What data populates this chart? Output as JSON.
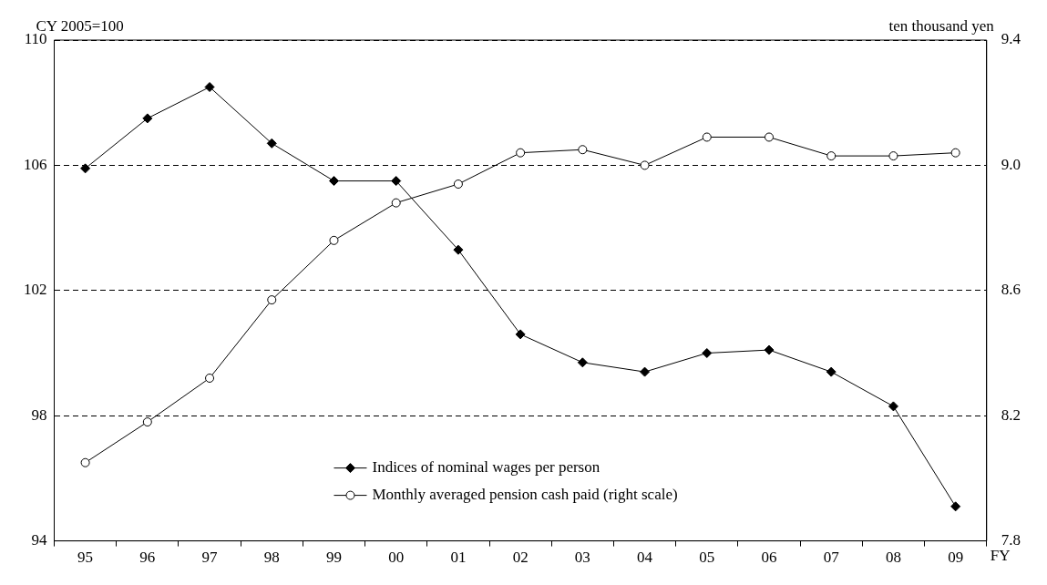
{
  "chart_data": {
    "type": "line",
    "xlabel": "FY",
    "ylabel": "CY 2005=100",
    "y2label": "ten thousand yen",
    "categories": [
      "95",
      "96",
      "97",
      "98",
      "99",
      "00",
      "01",
      "02",
      "03",
      "04",
      "05",
      "06",
      "07",
      "08",
      "09"
    ],
    "series": [
      {
        "name": "Indices of nominal wages per person",
        "color": "#000000",
        "marker": "diamond",
        "values": [
          105.9,
          107.5,
          108.5,
          106.7,
          105.5,
          105.5,
          103.3,
          100.6,
          99.7,
          99.4,
          100.0,
          100.1,
          99.4,
          98.3,
          95.1
        ]
      },
      {
        "name": "Monthly averaged pension cash paid (right scale)",
        "color": "#000000",
        "marker": "circle",
        "axis": "y2",
        "values": [
          8.05,
          8.18,
          8.32,
          8.57,
          8.76,
          8.88,
          8.94,
          9.04,
          9.05,
          9.0,
          9.09,
          9.09,
          9.03,
          9.03,
          9.04
        ]
      }
    ],
    "ylim": [
      94,
      110
    ],
    "yticks": [
      94,
      98,
      102,
      106,
      110
    ],
    "y2lim": [
      7.8,
      9.4
    ],
    "y2ticks": [
      7.8,
      8.2,
      8.6,
      {
        "value": 9,
        "label": "9.0"
      },
      9.4
    ],
    "grid": "y",
    "line_style": "solid",
    "legend": "bottom"
  }
}
